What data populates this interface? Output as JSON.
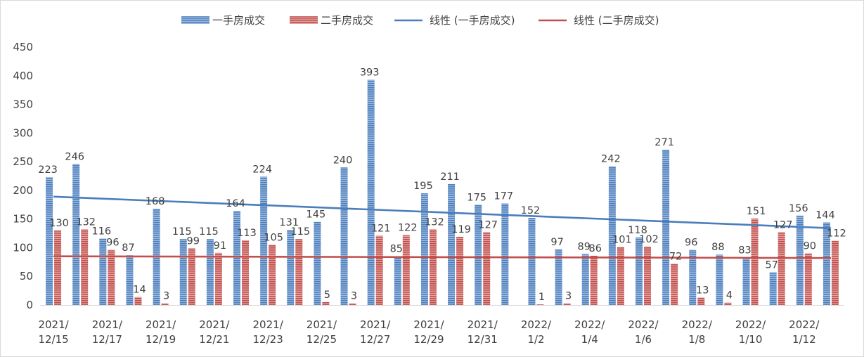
{
  "chart_data": {
    "type": "bar",
    "categories": [
      "2021/12/15",
      "2021/12/16",
      "2021/12/17",
      "2021/12/18",
      "2021/12/19",
      "2021/12/20",
      "2021/12/21",
      "2021/12/22",
      "2021/12/23",
      "2021/12/24",
      "2021/12/25",
      "2021/12/26",
      "2021/12/27",
      "2021/12/28",
      "2021/12/29",
      "2021/12/30",
      "2021/12/31",
      "2022/1/1",
      "2022/1/2",
      "2022/1/3",
      "2022/1/4",
      "2022/1/5",
      "2022/1/6",
      "2022/1/7",
      "2022/1/8",
      "2022/1/9",
      "2022/1/10",
      "2022/1/11",
      "2022/1/12",
      "2022/1/13"
    ],
    "tick_labels": [
      [
        "2021/",
        "12/15"
      ],
      [
        "2021/",
        "12/17"
      ],
      [
        "2021/",
        "12/19"
      ],
      [
        "2021/",
        "12/21"
      ],
      [
        "2021/",
        "12/23"
      ],
      [
        "2021/",
        "12/25"
      ],
      [
        "2021/",
        "12/27"
      ],
      [
        "2021/",
        "12/29"
      ],
      [
        "2021/",
        "12/31"
      ],
      [
        "2022/",
        "1/2"
      ],
      [
        "2022/",
        "1/4"
      ],
      [
        "2022/",
        "1/6"
      ],
      [
        "2022/",
        "1/8"
      ],
      [
        "2022/",
        "1/10"
      ],
      [
        "2022/",
        "1/12"
      ]
    ],
    "series": [
      {
        "name": "一手房成交",
        "color": "#4f81bd",
        "values": [
          223,
          246,
          116,
          87,
          168,
          115,
          115,
          164,
          224,
          131,
          145,
          240,
          393,
          85,
          195,
          211,
          175,
          177,
          152,
          97,
          89,
          242,
          118,
          271,
          96,
          88,
          83,
          57,
          156,
          144
        ]
      },
      {
        "name": "二手房成交",
        "color": "#c0504d",
        "values": [
          130,
          132,
          96,
          14,
          3,
          99,
          91,
          113,
          105,
          115,
          5,
          3,
          121,
          122,
          132,
          119,
          127,
          null,
          1,
          3,
          86,
          101,
          102,
          72,
          13,
          4,
          151,
          127,
          90,
          112
        ]
      }
    ],
    "trendlines": [
      {
        "name": "线性 (一手房成交)",
        "color": "#4a7ebb",
        "series_index": 0,
        "start": 189,
        "end": 134
      },
      {
        "name": "线性 (二手房成交)",
        "color": "#c0504d",
        "series_index": 1,
        "start": 85,
        "end": 82
      }
    ],
    "ylim": [
      0,
      450
    ],
    "yticks": [
      0,
      50,
      100,
      150,
      200,
      250,
      300,
      350,
      400,
      450
    ],
    "grid": false,
    "legend": "top",
    "xlabel": "",
    "ylabel": "",
    "title": ""
  }
}
